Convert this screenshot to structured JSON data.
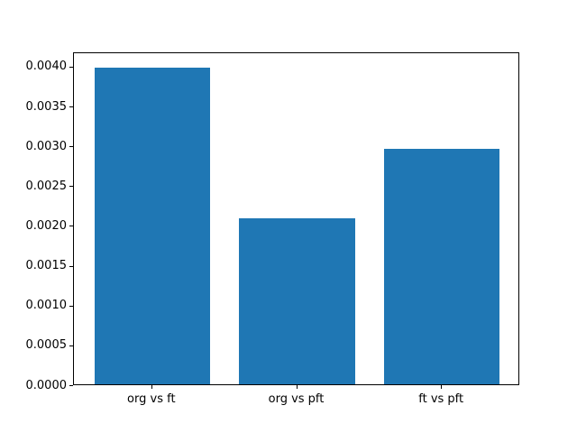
{
  "chart_data": {
    "type": "bar",
    "categories": [
      "org vs ft",
      "org vs pft",
      "ft vs pft"
    ],
    "values": [
      0.00398,
      0.00208,
      0.00296
    ],
    "title": "",
    "xlabel": "",
    "ylabel": "",
    "ylim": [
      0,
      0.00418
    ],
    "y_ticks": [
      0.0,
      0.0005,
      0.001,
      0.0015,
      0.002,
      0.0025,
      0.003,
      0.0035,
      0.004
    ],
    "y_tick_labels": [
      "0.0000",
      "0.0005",
      "0.0010",
      "0.0015",
      "0.0020",
      "0.0025",
      "0.0030",
      "0.0035",
      "0.0040"
    ],
    "bar_color": "#1f77b4",
    "bar_width_fraction": 0.8,
    "grid": false,
    "legend_position": "none"
  }
}
